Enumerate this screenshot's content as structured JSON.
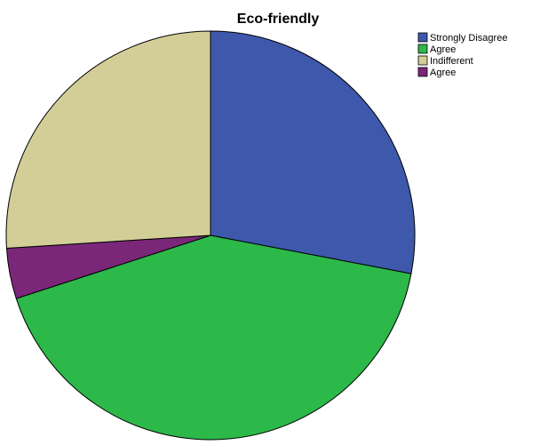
{
  "chart_data": {
    "type": "pie",
    "title": "Eco-friendly",
    "categories": [
      "Strongly Disagree",
      "Agree",
      "Indifferent",
      "Agree"
    ],
    "values": [
      28,
      42,
      26,
      4
    ],
    "colors": [
      "#3e58ac",
      "#2db84a",
      "#d3ce97",
      "#7b2779"
    ]
  }
}
